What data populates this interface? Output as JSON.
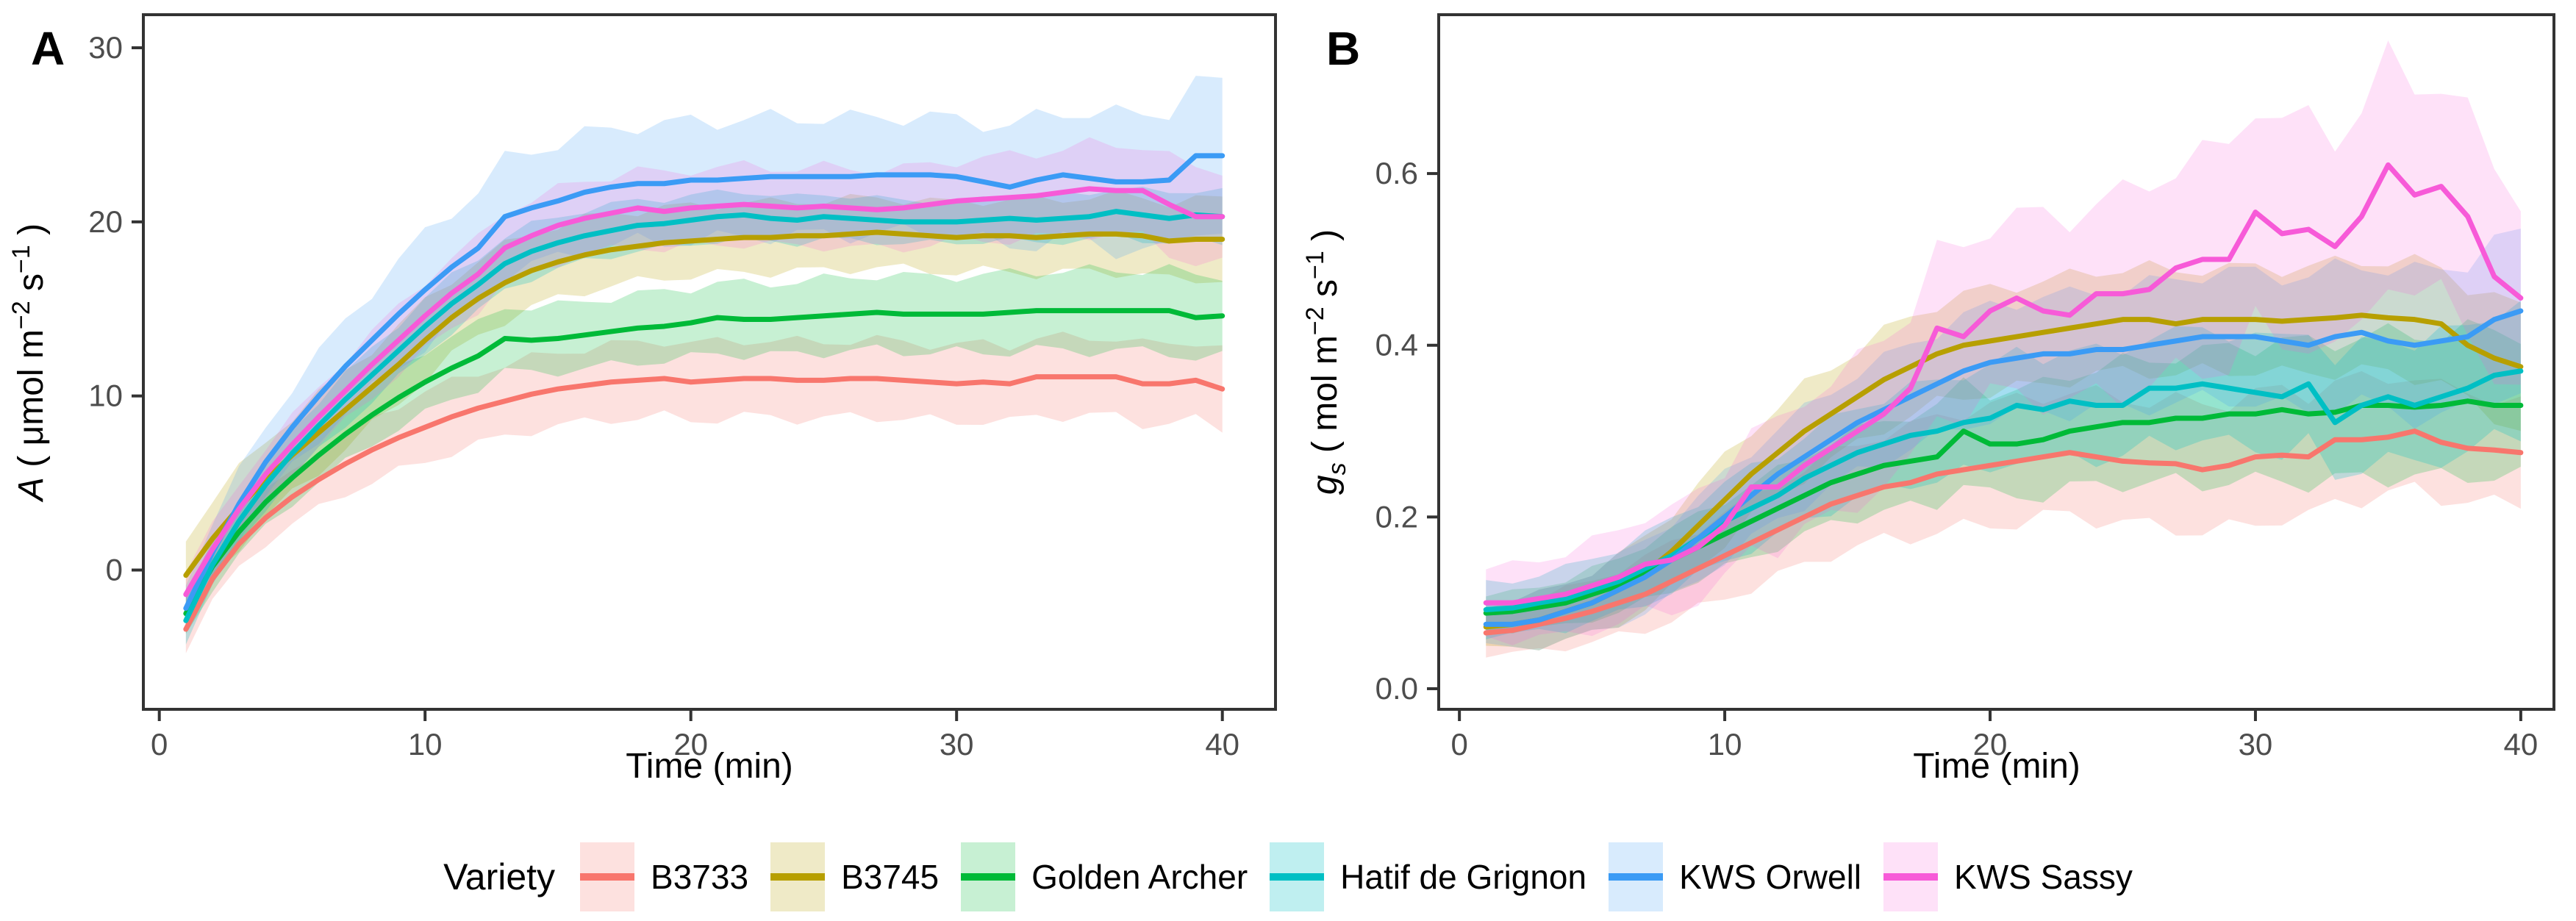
{
  "figure": {
    "panels": [
      {
        "letter": "A"
      },
      {
        "letter": "B"
      }
    ]
  },
  "legend": {
    "title": "Variety",
    "items": [
      {
        "label": "B3733",
        "line_color": "#F8766D",
        "fill_color": "rgba(248,118,109,0.22)"
      },
      {
        "label": "B3745",
        "line_color": "#B79F00",
        "fill_color": "rgba(183,159,0,0.22)"
      },
      {
        "label": "Golden Archer",
        "line_color": "#00BA38",
        "fill_color": "rgba(0,186,56,0.22)"
      },
      {
        "label": "Hatif de Grignon",
        "line_color": "#00BFC4",
        "fill_color": "rgba(0,191,196,0.25)"
      },
      {
        "label": "KWS Orwell",
        "line_color": "#3B9BF5",
        "fill_color": "rgba(59,155,245,0.20)"
      },
      {
        "label": "KWS Sassy",
        "line_color": "#F75AD8",
        "fill_color": "rgba(247,90,216,0.18)"
      }
    ]
  },
  "style": {
    "border_color": "#333333",
    "tick_color": "#333333",
    "tick_label_color": "#4d4d4d"
  },
  "chart_data": [
    {
      "type": "line",
      "panel": "A",
      "xlabel": "Time (min)",
      "ylabel": "A ( μmol m⁻² s⁻¹ )",
      "ylabel_parts": [
        {
          "t": "A",
          "i": 1
        },
        {
          "t": " ( μmol m"
        },
        {
          "t": "−2",
          "p": 1
        },
        {
          "t": " s"
        },
        {
          "t": "−1",
          "p": 1
        },
        {
          "t": " )"
        }
      ],
      "xlim": [
        -0.6,
        42.0
      ],
      "ylim": [
        -8.0,
        31.9
      ],
      "xticks": [
        0,
        10,
        20,
        30,
        40
      ],
      "xtick_labels": [
        "0",
        "10",
        "20",
        "30",
        "40"
      ],
      "yticks": [
        0,
        10,
        20,
        30
      ],
      "ytick_labels": [
        "0",
        "10",
        "20",
        "30"
      ],
      "grid": false,
      "x": [
        1,
        2,
        3,
        4,
        5,
        6,
        7,
        8,
        9,
        10,
        11,
        12,
        13,
        14,
        15,
        16,
        17,
        18,
        19,
        20,
        21,
        22,
        23,
        24,
        25,
        26,
        27,
        28,
        29,
        30,
        31,
        32,
        33,
        34,
        35,
        36,
        37,
        38,
        39,
        40
      ],
      "series": [
        {
          "name": "B3733",
          "values": [
            -3.4,
            -0.5,
            1.5,
            3.0,
            4.2,
            5.2,
            6.1,
            6.9,
            7.6,
            8.2,
            8.8,
            9.3,
            9.7,
            10.1,
            10.4,
            10.6,
            10.8,
            10.9,
            11.0,
            10.8,
            10.9,
            11.0,
            11.0,
            10.9,
            10.9,
            11.0,
            11.0,
            10.9,
            10.8,
            10.7,
            10.8,
            10.7,
            11.1,
            11.1,
            11.1,
            11.1,
            10.7,
            10.7,
            10.9,
            10.4
          ],
          "band": {
            "x": [
              1,
              10,
              20,
              30,
              40
            ],
            "hw": [
              1.2,
              2.0,
              2.2,
              2.2,
              2.3
            ]
          }
        },
        {
          "name": "B3745",
          "values": [
            -0.3,
            1.8,
            3.6,
            5.2,
            6.6,
            7.9,
            9.2,
            10.5,
            11.8,
            13.2,
            14.5,
            15.6,
            16.5,
            17.2,
            17.7,
            18.1,
            18.4,
            18.6,
            18.8,
            18.9,
            19.0,
            19.1,
            19.1,
            19.2,
            19.2,
            19.3,
            19.4,
            19.3,
            19.2,
            19.1,
            19.2,
            19.2,
            19.1,
            19.2,
            19.3,
            19.3,
            19.2,
            18.9,
            19.0,
            19.0
          ],
          "band": {
            "x": [
              1,
              10,
              20,
              30,
              40
            ],
            "hw": [
              2.2,
              2.2,
              2.0,
              2.0,
              2.3
            ]
          }
        },
        {
          "name": "Golden Archer",
          "values": [
            -2.5,
            0.2,
            2.2,
            3.9,
            5.3,
            6.6,
            7.8,
            8.9,
            9.9,
            10.8,
            11.6,
            12.3,
            13.3,
            13.2,
            13.3,
            13.5,
            13.7,
            13.9,
            14.0,
            14.2,
            14.5,
            14.4,
            14.4,
            14.5,
            14.6,
            14.7,
            14.8,
            14.7,
            14.7,
            14.7,
            14.7,
            14.8,
            14.9,
            14.9,
            14.9,
            14.9,
            14.9,
            14.9,
            14.5,
            14.6
          ],
          "band": {
            "x": [
              1,
              10,
              20,
              30,
              40
            ],
            "hw": [
              1.2,
              1.8,
              2.0,
              2.2,
              2.4
            ]
          }
        },
        {
          "name": "Hatif de Grignon",
          "values": [
            -2.9,
            0.3,
            2.8,
            4.9,
            6.7,
            8.3,
            9.8,
            11.2,
            12.6,
            14.0,
            15.3,
            16.4,
            17.6,
            18.3,
            18.8,
            19.2,
            19.5,
            19.8,
            19.9,
            20.1,
            20.3,
            20.4,
            20.2,
            20.1,
            20.3,
            20.2,
            20.1,
            20.0,
            20.0,
            20.0,
            20.1,
            20.2,
            20.1,
            20.2,
            20.3,
            20.6,
            20.4,
            20.2,
            20.4,
            20.3
          ],
          "band": {
            "x": [
              1,
              10,
              20,
              30,
              40
            ],
            "hw": [
              1.2,
              1.6,
              1.4,
              1.2,
              1.5
            ]
          }
        },
        {
          "name": "KWS Orwell",
          "values": [
            -2.2,
            1.0,
            3.8,
            6.2,
            8.2,
            10.0,
            11.7,
            13.2,
            14.7,
            16.1,
            17.4,
            18.5,
            20.3,
            20.8,
            21.2,
            21.7,
            22.0,
            22.2,
            22.2,
            22.4,
            22.4,
            22.5,
            22.6,
            22.6,
            22.6,
            22.6,
            22.7,
            22.7,
            22.7,
            22.6,
            22.3,
            22.0,
            22.4,
            22.7,
            22.5,
            22.3,
            22.3,
            22.4,
            23.8,
            23.8
          ],
          "band": {
            "x": [
              1,
              10,
              20,
              30,
              40
            ],
            "hw": [
              1.5,
              3.2,
              3.4,
              3.3,
              4.2
            ]
          }
        },
        {
          "name": "KWS Sassy",
          "values": [
            -1.4,
            1.2,
            3.5,
            5.5,
            7.2,
            8.8,
            10.3,
            11.8,
            13.2,
            14.6,
            15.9,
            17.0,
            18.5,
            19.2,
            19.8,
            20.2,
            20.5,
            20.8,
            20.6,
            20.8,
            20.9,
            21.0,
            20.9,
            20.8,
            20.9,
            20.8,
            20.7,
            20.8,
            21.0,
            21.2,
            21.3,
            21.4,
            21.5,
            21.7,
            21.9,
            21.8,
            21.8,
            21.0,
            20.3,
            20.3
          ],
          "band": {
            "x": [
              1,
              10,
              20,
              30,
              40
            ],
            "hw": [
              1.3,
              2.0,
              2.2,
              2.3,
              2.8
            ]
          }
        }
      ]
    },
    {
      "type": "line",
      "panel": "B",
      "xlabel": "Time (min)",
      "ylabel": "gs ( mol  m⁻² s⁻¹ )",
      "ylabel_parts": [
        {
          "t": "g",
          "i": 1
        },
        {
          "t": "s",
          "i": 1,
          "b": 1
        },
        {
          "t": " ( mol  m"
        },
        {
          "t": "−2",
          "p": 1
        },
        {
          "t": " s"
        },
        {
          "t": "−1",
          "p": 1
        },
        {
          "t": " )"
        }
      ],
      "xlim": [
        -0.78,
        41.25
      ],
      "ylim": [
        -0.024,
        0.785
      ],
      "xticks": [
        0,
        10,
        20,
        30,
        40
      ],
      "xtick_labels": [
        "0",
        "10",
        "20",
        "30",
        "40"
      ],
      "yticks": [
        0.0,
        0.2,
        0.4,
        0.6
      ],
      "ytick_labels": [
        "0.0",
        "0.2",
        "0.4",
        "0.6"
      ],
      "grid": false,
      "x": [
        1,
        2,
        3,
        4,
        5,
        6,
        7,
        8,
        9,
        10,
        11,
        12,
        13,
        14,
        15,
        16,
        17,
        18,
        19,
        20,
        21,
        22,
        23,
        24,
        25,
        26,
        27,
        28,
        29,
        30,
        31,
        32,
        33,
        34,
        35,
        36,
        37,
        38,
        39,
        40
      ],
      "series": [
        {
          "name": "B3733",
          "values": [
            0.065,
            0.068,
            0.075,
            0.082,
            0.09,
            0.1,
            0.11,
            0.125,
            0.14,
            0.155,
            0.17,
            0.185,
            0.2,
            0.215,
            0.225,
            0.235,
            0.24,
            0.25,
            0.255,
            0.26,
            0.265,
            0.27,
            0.275,
            0.27,
            0.265,
            0.263,
            0.262,
            0.255,
            0.26,
            0.27,
            0.272,
            0.27,
            0.29,
            0.29,
            0.293,
            0.3,
            0.287,
            0.28,
            0.278,
            0.275
          ],
          "band": {
            "x": [
              1,
              10,
              20,
              30,
              40
            ],
            "hw": [
              0.025,
              0.05,
              0.07,
              0.075,
              0.06
            ]
          }
        },
        {
          "name": "B3745",
          "values": [
            0.072,
            0.075,
            0.08,
            0.09,
            0.1,
            0.115,
            0.135,
            0.16,
            0.19,
            0.22,
            0.25,
            0.275,
            0.3,
            0.32,
            0.34,
            0.36,
            0.375,
            0.39,
            0.4,
            0.405,
            0.41,
            0.415,
            0.42,
            0.425,
            0.43,
            0.43,
            0.425,
            0.43,
            0.43,
            0.43,
            0.428,
            0.43,
            0.432,
            0.435,
            0.432,
            0.43,
            0.425,
            0.4,
            0.385,
            0.375
          ],
          "band": {
            "x": [
              1,
              10,
              20,
              30,
              40
            ],
            "hw": [
              0.025,
              0.05,
              0.06,
              0.06,
              0.07
            ]
          }
        },
        {
          "name": "Golden Archer",
          "values": [
            0.088,
            0.09,
            0.095,
            0.1,
            0.11,
            0.12,
            0.135,
            0.15,
            0.165,
            0.18,
            0.195,
            0.21,
            0.225,
            0.24,
            0.25,
            0.26,
            0.265,
            0.27,
            0.3,
            0.285,
            0.285,
            0.29,
            0.3,
            0.305,
            0.31,
            0.31,
            0.315,
            0.315,
            0.32,
            0.32,
            0.325,
            0.32,
            0.322,
            0.33,
            0.33,
            0.328,
            0.33,
            0.335,
            0.33,
            0.33
          ],
          "band": {
            "x": [
              1,
              10,
              20,
              30,
              40
            ],
            "hw": [
              0.02,
              0.04,
              0.06,
              0.08,
              0.085
            ]
          }
        },
        {
          "name": "Hatif de Grignon",
          "values": [
            0.092,
            0.094,
            0.1,
            0.105,
            0.115,
            0.125,
            0.14,
            0.155,
            0.175,
            0.195,
            0.21,
            0.225,
            0.245,
            0.26,
            0.275,
            0.285,
            0.295,
            0.3,
            0.31,
            0.315,
            0.33,
            0.325,
            0.335,
            0.33,
            0.33,
            0.35,
            0.35,
            0.355,
            0.35,
            0.345,
            0.34,
            0.355,
            0.31,
            0.33,
            0.34,
            0.33,
            0.34,
            0.35,
            0.365,
            0.37
          ],
          "band": {
            "x": [
              1,
              10,
              20,
              30,
              40
            ],
            "hw": [
              0.03,
              0.045,
              0.06,
              0.065,
              0.075
            ]
          }
        },
        {
          "name": "KWS Orwell",
          "values": [
            0.075,
            0.075,
            0.08,
            0.09,
            0.1,
            0.115,
            0.13,
            0.15,
            0.175,
            0.2,
            0.225,
            0.25,
            0.27,
            0.29,
            0.31,
            0.325,
            0.34,
            0.355,
            0.37,
            0.38,
            0.385,
            0.39,
            0.39,
            0.395,
            0.395,
            0.4,
            0.405,
            0.41,
            0.41,
            0.41,
            0.405,
            0.4,
            0.41,
            0.415,
            0.405,
            0.4,
            0.405,
            0.41,
            0.43,
            0.44
          ],
          "band": {
            "x": [
              1,
              10,
              20,
              30,
              40
            ],
            "hw": [
              0.025,
              0.05,
              0.065,
              0.075,
              0.09
            ]
          }
        },
        {
          "name": "KWS Sassy",
          "values": [
            0.1,
            0.1,
            0.105,
            0.11,
            0.12,
            0.13,
            0.145,
            0.15,
            0.165,
            0.19,
            0.235,
            0.235,
            0.26,
            0.28,
            0.3,
            0.32,
            0.35,
            0.42,
            0.41,
            0.44,
            0.455,
            0.44,
            0.435,
            0.46,
            0.46,
            0.465,
            0.49,
            0.5,
            0.5,
            0.555,
            0.53,
            0.535,
            0.515,
            0.55,
            0.61,
            0.575,
            0.585,
            0.55,
            0.48,
            0.455
          ],
          "band": {
            "x": [
              1,
              10,
              20,
              30,
              40
            ],
            "hw": [
              0.04,
              0.065,
              0.1,
              0.13,
              0.12
            ]
          }
        }
      ]
    }
  ]
}
